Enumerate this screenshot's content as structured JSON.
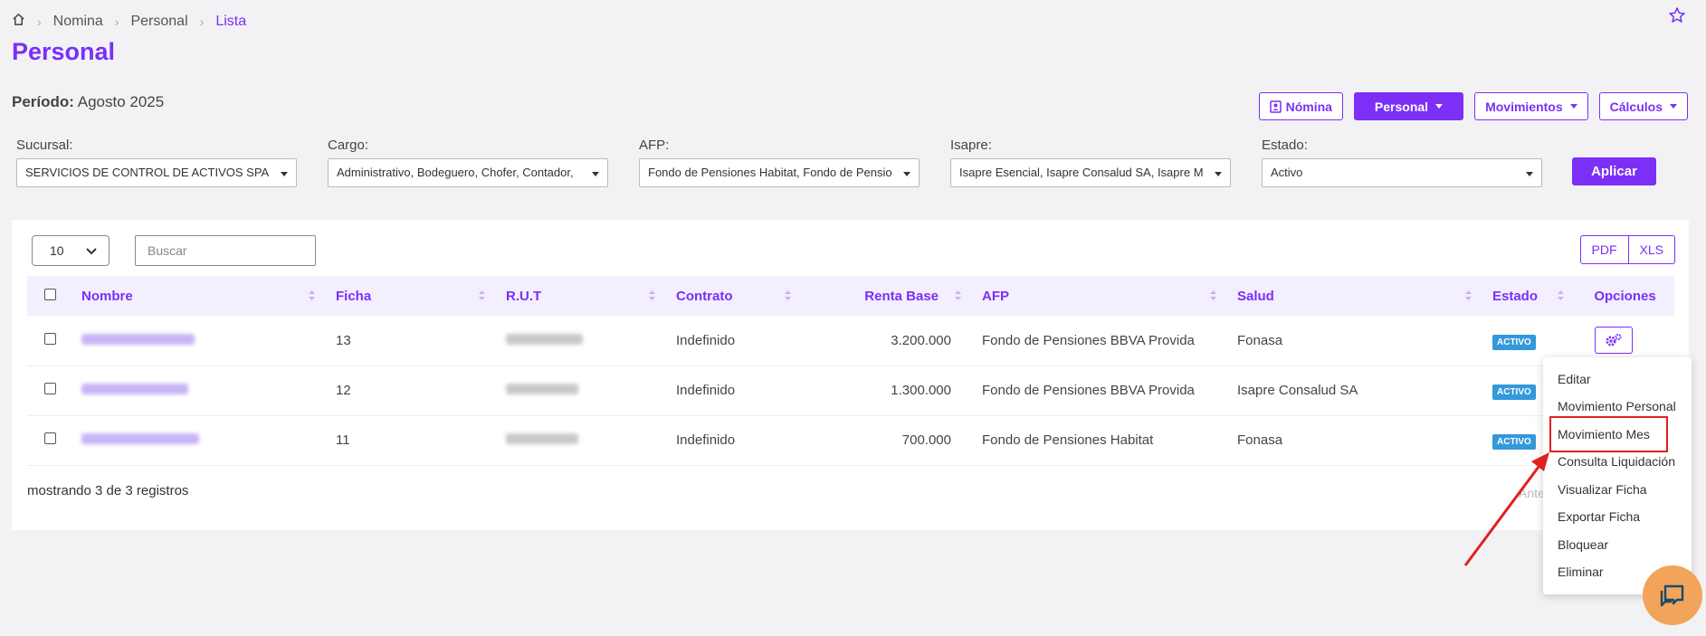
{
  "breadcrumb": {
    "items": [
      "Nomina",
      "Personal",
      "Lista"
    ]
  },
  "page": {
    "title": "Personal"
  },
  "periodo": {
    "label": "Período:",
    "value": "Agosto 2025"
  },
  "top_buttons": {
    "nomina": "Nómina",
    "personal": "Personal",
    "movimientos": "Movimientos",
    "calculos": "Cálculos"
  },
  "filters": [
    {
      "label": "Sucursal:",
      "value": "SERVICIOS DE CONTROL DE ACTIVOS SPA"
    },
    {
      "label": "Cargo:",
      "value": "Administrativo, Bodeguero, Chofer, Contador,"
    },
    {
      "label": "AFP:",
      "value": "Fondo de Pensiones Habitat, Fondo de Pensio"
    },
    {
      "label": "Isapre:",
      "value": "Isapre Esencial, Isapre Consalud SA, Isapre M"
    },
    {
      "label": "Estado:",
      "value": "Activo"
    }
  ],
  "apply_label": "Aplicar",
  "table_controls": {
    "page_size": "10",
    "search_placeholder": "Buscar",
    "pdf": "PDF",
    "xls": "XLS"
  },
  "table": {
    "columns": [
      "Nombre",
      "Ficha",
      "R.U.T",
      "Contrato",
      "Renta Base",
      "AFP",
      "Salud",
      "Estado",
      "Opciones"
    ],
    "rows": [
      {
        "ficha": "13",
        "contrato": "Indefinido",
        "renta": "3.200.000",
        "afp": "Fondo de Pensiones BBVA Provida",
        "salud": "Fonasa",
        "estado": "ACTIVO"
      },
      {
        "ficha": "12",
        "contrato": "Indefinido",
        "renta": "1.300.000",
        "afp": "Fondo de Pensiones BBVA Provida",
        "salud": "Isapre Consalud SA",
        "estado": "ACTIVO"
      },
      {
        "ficha": "11",
        "contrato": "Indefinido",
        "renta": "700.000",
        "afp": "Fondo de Pensiones Habitat",
        "salud": "Fonasa",
        "estado": "ACTIVO"
      }
    ]
  },
  "footer": {
    "summary": "mostrando 3 de 3 registros",
    "prev_partial": "Ante"
  },
  "options_menu": [
    "Editar",
    "Movimiento Personal",
    "Movimiento Mes",
    "Consulta Liquidación",
    "Visualizar Ficha",
    "Exportar Ficha",
    "Bloquear",
    "Eliminar"
  ],
  "colors": {
    "accent": "#7b2ff7",
    "badge": "#3498db",
    "highlight": "#e02020",
    "chat": "#f2a45a"
  }
}
